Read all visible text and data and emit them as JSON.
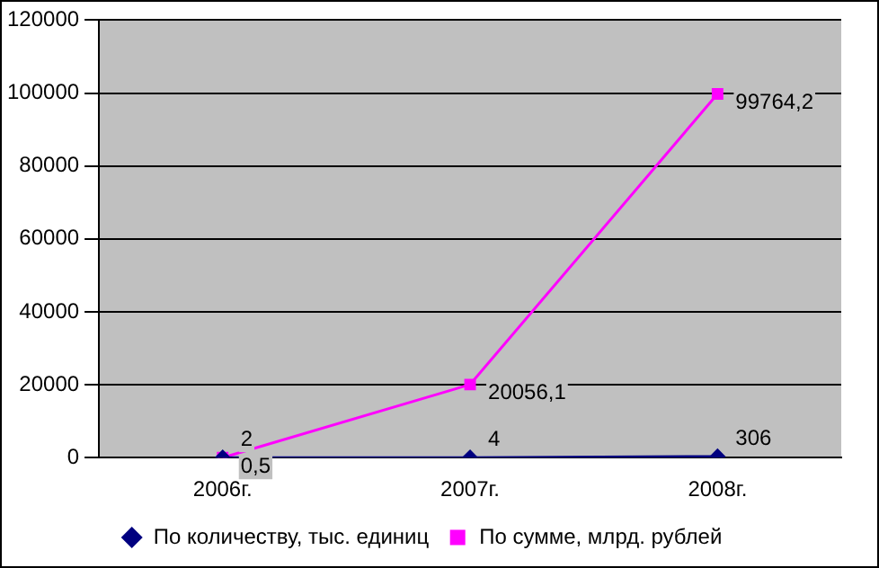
{
  "chart_data": {
    "type": "line",
    "categories": [
      "2006г.",
      "2007г.",
      "2008г."
    ],
    "series": [
      {
        "name": "По количеству, тыс. единиц",
        "color": "#000080",
        "values": [
          2,
          4,
          306
        ],
        "value_labels": [
          "2",
          "4",
          "306"
        ],
        "marker": "diamond"
      },
      {
        "name": "По сумме, млрд. рублей",
        "color": "#ff00ff",
        "values": [
          0.5,
          20056.1,
          99764.2
        ],
        "value_labels": [
          "0,5",
          "20056,1",
          "99764,2"
        ],
        "marker": "square"
      }
    ],
    "ylim": [
      0,
      120000
    ],
    "yticks": [
      0,
      20000,
      40000,
      60000,
      80000,
      100000,
      120000
    ],
    "grid": "y",
    "legend": "bottom"
  }
}
